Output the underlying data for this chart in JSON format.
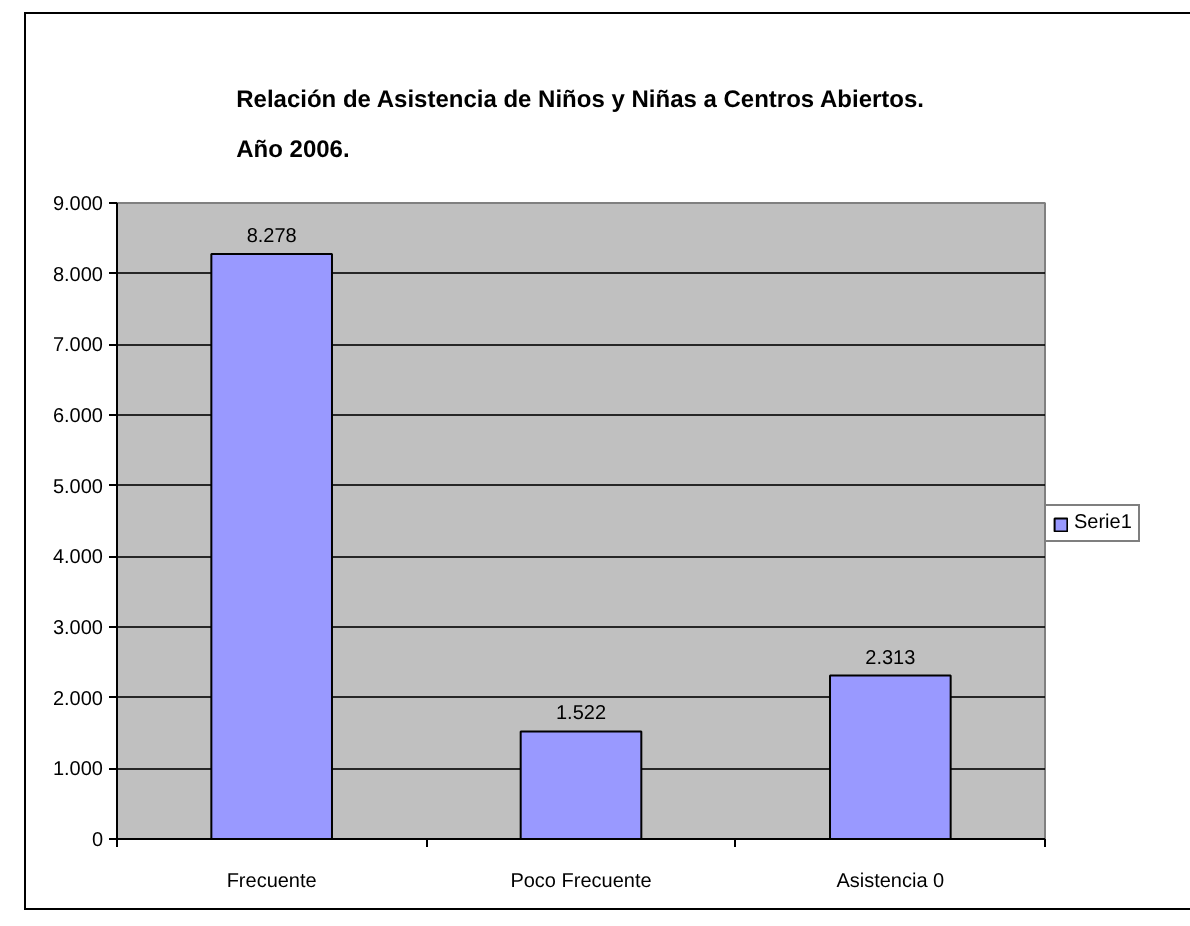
{
  "chart_data": {
    "type": "bar",
    "title": "Relación de Asistencia de Niños y Niñas a Centros Abiertos.\nAño 2006.",
    "categories": [
      "Frecuente",
      "Poco Frecuente",
      "Asistencia 0"
    ],
    "series": [
      {
        "name": "Serie1",
        "color": "#9999ff",
        "values": [
          8278,
          1522,
          2313
        ],
        "value_labels": [
          "8.278",
          "1.522",
          "2.313"
        ]
      }
    ],
    "ylim": [
      0,
      9000
    ],
    "yticks": [
      0,
      {
        "value": 1000,
        "label": "1.000"
      },
      {
        "value": 2000,
        "label": "2.000"
      },
      {
        "value": 3000,
        "label": "3.000"
      },
      {
        "value": 4000,
        "label": "4.000"
      },
      {
        "value": 5000,
        "label": "5.000"
      },
      {
        "value": 6000,
        "label": "6.000"
      },
      {
        "value": 7000,
        "label": "7.000"
      },
      {
        "value": 8000,
        "label": "8.000"
      },
      {
        "value": 9000,
        "label": "9.000"
      }
    ],
    "grid": "y",
    "legend": "right"
  }
}
